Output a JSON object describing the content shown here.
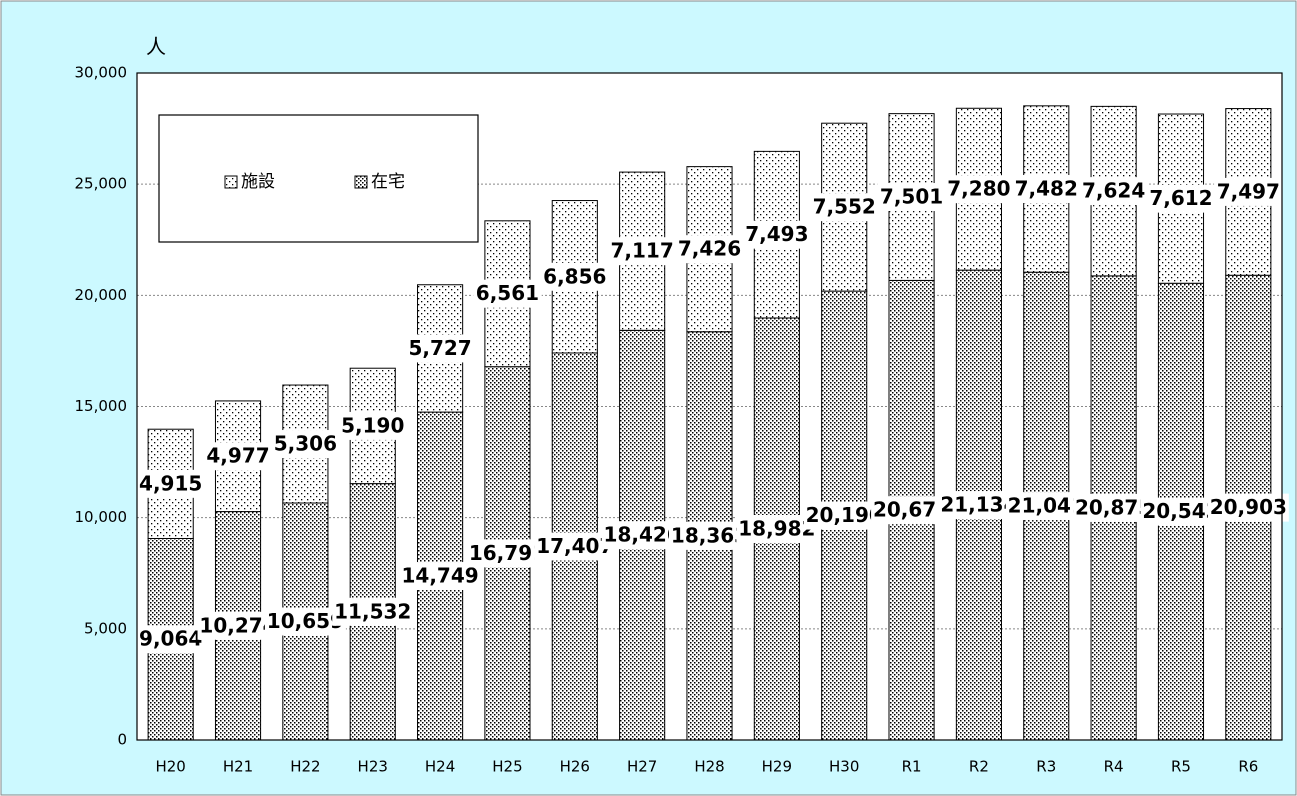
{
  "chart_data": {
    "type": "stacked_bar",
    "y_label": "人",
    "categories": [
      "H20",
      "H21",
      "H22",
      "H23",
      "H24",
      "H25",
      "H26",
      "H27",
      "H28",
      "H29",
      "H30",
      "R1",
      "R2",
      "R3",
      "R4",
      "R5",
      "R6"
    ],
    "series": [
      {
        "name": "施設",
        "color": "#000000",
        "pattern": "sparse",
        "values": [
          4915,
          4977,
          5306,
          5190,
          5727,
          6561,
          6856,
          7117,
          7426,
          7493,
          7552,
          7501,
          7280,
          7482,
          7624,
          7612,
          7497
        ],
        "value_labels": [
          "4,915",
          "4,977",
          "5,306",
          "5,190",
          "5,727",
          "6,561",
          "6,856",
          "7,117",
          "7,426",
          "7,493",
          "7,552",
          "7,501",
          "7,280",
          "7,482",
          "7,624",
          "7,612",
          "7,497"
        ]
      },
      {
        "name": "在宅",
        "color": "#000000",
        "pattern": "dense",
        "values": [
          9064,
          10274,
          10659,
          11532,
          14749,
          16791,
          17407,
          18426,
          18363,
          18982,
          20190,
          20671,
          21134,
          21041,
          20875,
          20543,
          20903
        ],
        "value_labels": [
          "9,064",
          "10,274",
          "10,659",
          "11,532",
          "14,749",
          "16,791",
          "17,407",
          "18,426",
          "18,363",
          "18,982",
          "20,190",
          "20,671",
          "21,134",
          "21,041",
          "20,875",
          "20,543",
          "20,903"
        ]
      }
    ],
    "stack_order": [
      1,
      0
    ],
    "ylim": [
      0,
      30000
    ],
    "yticks": [
      0,
      {
        "value": 5000,
        "label": "5,000"
      },
      {
        "value": 10000,
        "label": "10,000"
      },
      {
        "value": 15000,
        "label": "15,000"
      },
      {
        "value": 20000,
        "label": "20,000"
      },
      {
        "value": 25000,
        "label": "25,000"
      },
      {
        "value": 30000,
        "label": "30,000"
      }
    ],
    "grid": true,
    "legend": "upper left"
  }
}
